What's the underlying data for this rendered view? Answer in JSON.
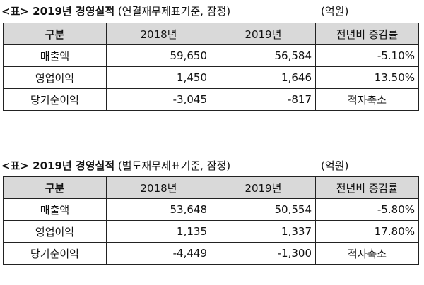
{
  "tables": [
    {
      "caption_prefix": "<표> 2019년 경영실적",
      "caption_basis": "(연결재무제표기준, 잠정)",
      "unit": "(억원)",
      "headers": [
        "구분",
        "2018년",
        "2019년",
        "전년비 증감률"
      ],
      "rows": [
        {
          "label": "매출액",
          "v2018": "59,650",
          "v2019": "56,584",
          "change": "-5.10%"
        },
        {
          "label": "영업이익",
          "v2018": "1,450",
          "v2019": "1,646",
          "change": "13.50%"
        },
        {
          "label": "당기순이익",
          "v2018": "-3,045",
          "v2019": "-817",
          "change": "적자축소"
        }
      ]
    },
    {
      "caption_prefix": "<표> 2019년 경영실적",
      "caption_basis": "(별도재무제표기준, 잠정)",
      "unit": "(억원)",
      "headers": [
        "구분",
        "2018년",
        "2019년",
        "전년비 증감률"
      ],
      "rows": [
        {
          "label": "매출액",
          "v2018": "53,648",
          "v2019": "50,554",
          "change": "-5.80%"
        },
        {
          "label": "영업이익",
          "v2018": "1,135",
          "v2019": "1,337",
          "change": "17.80%"
        },
        {
          "label": "당기순이익",
          "v2018": "-4,449",
          "v2019": "-1,300",
          "change": "적자축소"
        }
      ]
    }
  ]
}
